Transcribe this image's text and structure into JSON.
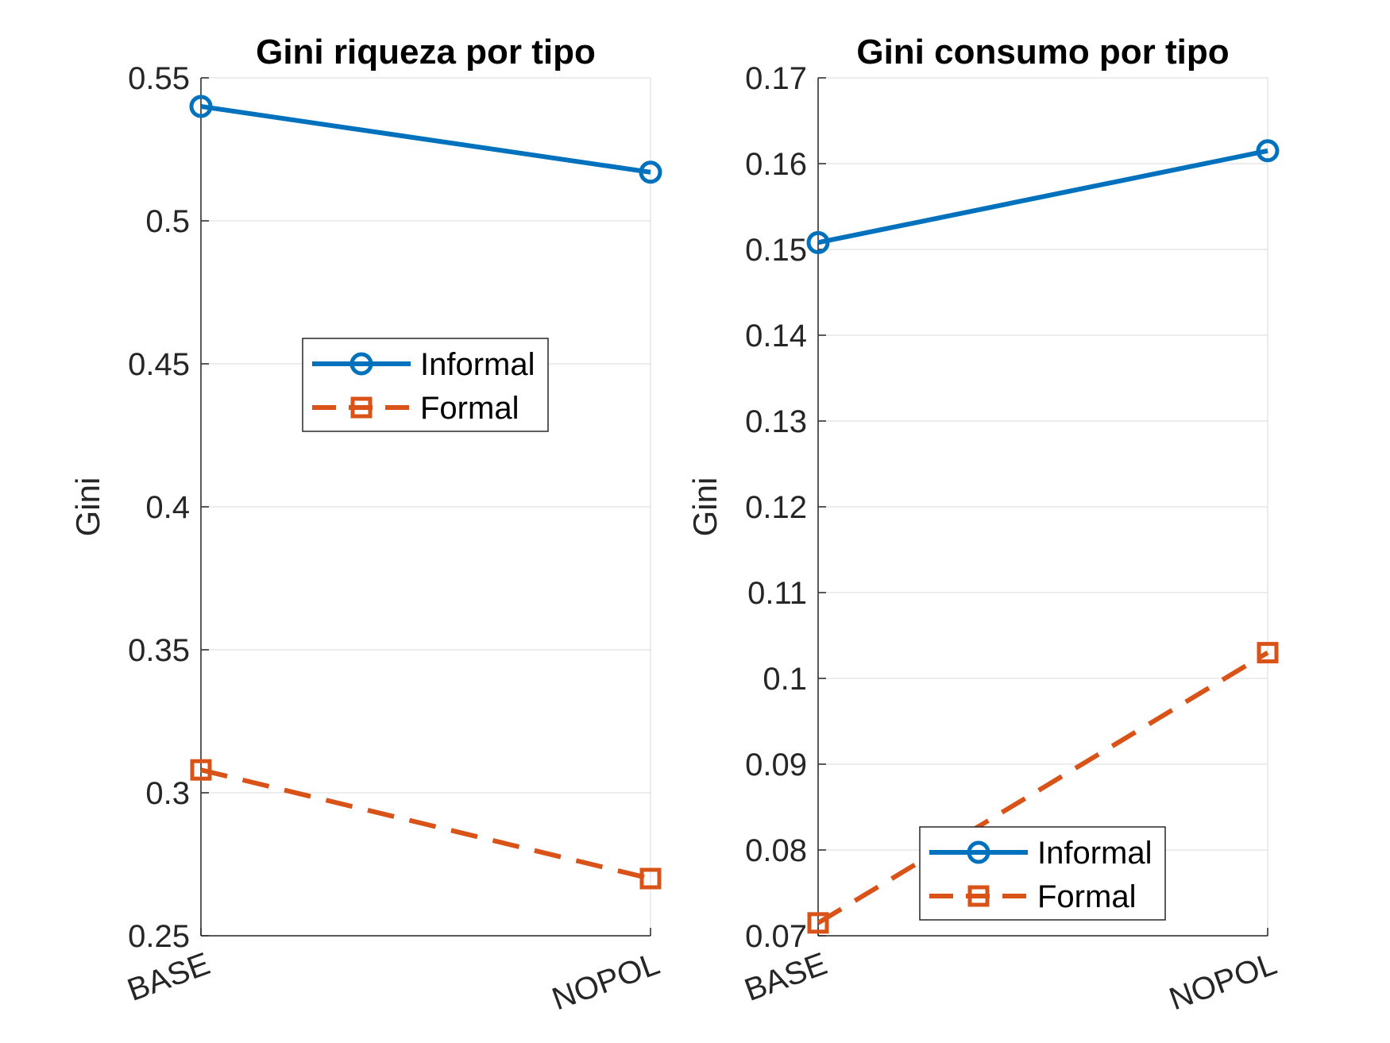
{
  "chart_data": [
    {
      "type": "line",
      "title": "Gini riqueza por tipo",
      "xlabel": "",
      "ylabel": "Gini",
      "categories": [
        "BASE",
        "NOPOL"
      ],
      "ylim": [
        0.25,
        0.55
      ],
      "yticks": [
        "0.25",
        "0.3",
        "0.35",
        "0.4",
        "0.45",
        "0.5",
        "0.55"
      ],
      "grid": true,
      "legend_position": "center",
      "series": [
        {
          "name": "Informal",
          "values": [
            0.54,
            0.517
          ],
          "color": "#0072BD",
          "style": "solid",
          "marker": "circle"
        },
        {
          "name": "Formal",
          "values": [
            0.308,
            0.27
          ],
          "color": "#D95319",
          "style": "dashed",
          "marker": "square"
        }
      ]
    },
    {
      "type": "line",
      "title": "Gini consumo por tipo",
      "xlabel": "",
      "ylabel": "Gini",
      "categories": [
        "BASE",
        "NOPOL"
      ],
      "ylim": [
        0.07,
        0.17
      ],
      "yticks": [
        "0.07",
        "0.08",
        "0.09",
        "0.1",
        "0.11",
        "0.12",
        "0.13",
        "0.14",
        "0.15",
        "0.16",
        "0.17"
      ],
      "grid": true,
      "legend_position": "bottom-right",
      "series": [
        {
          "name": "Informal",
          "values": [
            0.1508,
            0.1615
          ],
          "color": "#0072BD",
          "style": "solid",
          "marker": "circle"
        },
        {
          "name": "Formal",
          "values": [
            0.0715,
            0.103
          ],
          "color": "#D95319",
          "style": "dashed",
          "marker": "square"
        }
      ]
    }
  ]
}
